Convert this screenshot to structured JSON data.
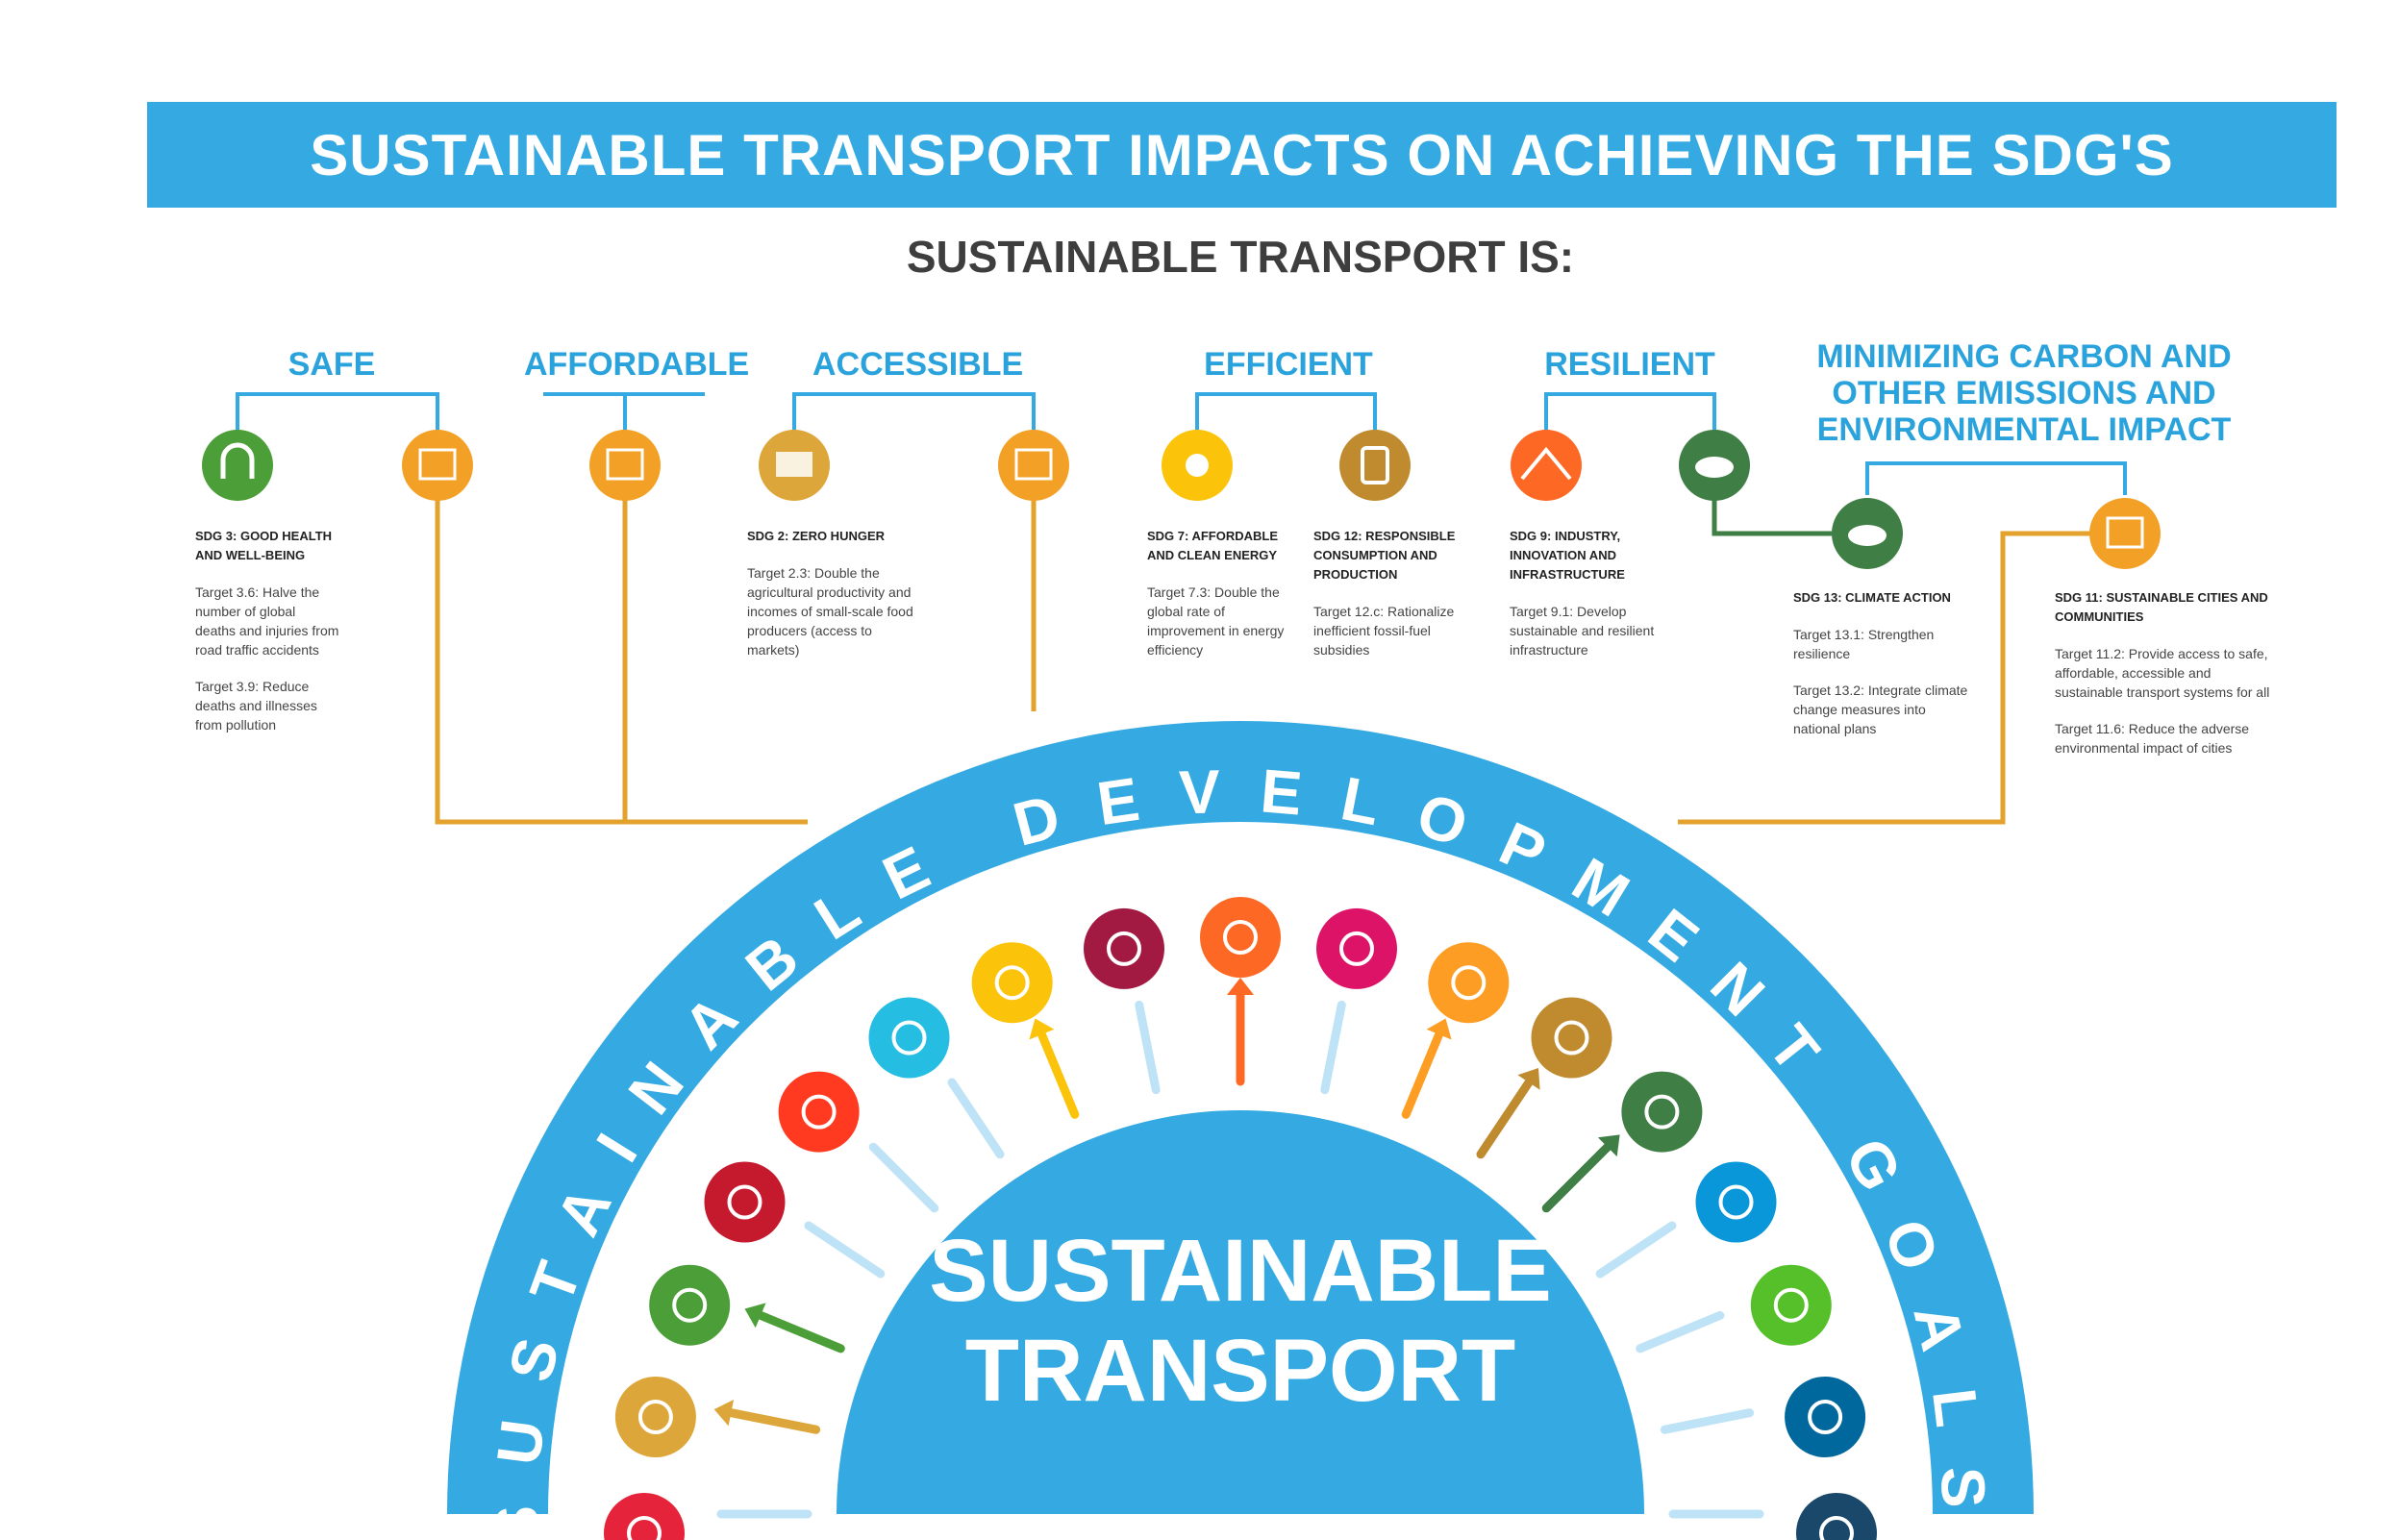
{
  "header": {
    "title": "SUSTAINABLE TRANSPORT IMPACTS ON ACHIEVING THE SDG'S",
    "subtitle": "SUSTAINABLE TRANSPORT IS:"
  },
  "attributes": [
    {
      "label": "SAFE"
    },
    {
      "label": "AFFORDABLE"
    },
    {
      "label": "ACCESSIBLE"
    },
    {
      "label": "EFFICIENT"
    },
    {
      "label": "RESILIENT"
    },
    {
      "label": "MINIMIZING CARBON AND OTHER EMISSIONS AND ENVIRONMENTAL IMPACT"
    }
  ],
  "sdg_notes": [
    {
      "title": "SDG 3: GOOD HEALTH AND WELL-BEING",
      "targets": [
        "Target 3.6: Halve the number of global deaths and injuries from road traffic accidents",
        "Target 3.9: Reduce deaths and illnesses from pollution"
      ]
    },
    {
      "title": "SDG 2: ZERO HUNGER",
      "targets": [
        "Target 2.3: Double the agricultural productivity and incomes of small-scale food producers (access to markets)"
      ]
    },
    {
      "title": "SDG 7: AFFORDABLE AND CLEAN ENERGY",
      "targets": [
        "Target 7.3: Double the global rate of improvement in energy efficiency"
      ]
    },
    {
      "title": "SDG 12: RESPONSIBLE CONSUMPTION AND PRODUCTION",
      "targets": [
        "Target 12.c: Rationalize inefficient fossil-fuel subsidies"
      ]
    },
    {
      "title": "SDG 9: INDUSTRY, INNOVATION AND INFRASTRUCTURE",
      "targets": [
        "Target 9.1: Develop sustainable and resilient infrastructure"
      ]
    },
    {
      "title": "SDG 13: CLIMATE ACTION",
      "targets": [
        "Target 13.1: Strengthen resilience",
        "Target 13.2: Integrate climate change measures into national plans"
      ]
    },
    {
      "title": "SDG 11: SUSTAINABLE CITIES AND COMMUNITIES",
      "targets": [
        "Target 11.2: Provide access to safe, affordable, accessible and sustainable transport systems for all",
        "Target 11.6: Reduce the adverse environmental impact of cities"
      ]
    }
  ],
  "arc": {
    "label": "SUSTAINABLE DEVELOPMENT GOALS",
    "center_line1": "SUSTAINABLE",
    "center_line2": "TRANSPORT"
  },
  "colors": {
    "banner": "#35a9e1",
    "arc_blue": "#35a9e1",
    "connector_orange": "#e3a22e",
    "connector_green": "#3f7e44"
  },
  "goal_icons": [
    {
      "name": "no-poverty-icon",
      "color": "#e5243b"
    },
    {
      "name": "zero-hunger-icon",
      "color": "#dda63a"
    },
    {
      "name": "good-health-icon",
      "color": "#4c9f38"
    },
    {
      "name": "quality-education-icon",
      "color": "#c5192d"
    },
    {
      "name": "gender-equality-icon",
      "color": "#ff3a21"
    },
    {
      "name": "clean-water-icon",
      "color": "#26bde2"
    },
    {
      "name": "clean-energy-icon",
      "color": "#fcc30b"
    },
    {
      "name": "decent-work-icon",
      "color": "#a21942"
    },
    {
      "name": "industry-innovation-icon",
      "color": "#fd6925"
    },
    {
      "name": "reduced-inequalities-icon",
      "color": "#dd1367"
    },
    {
      "name": "sustainable-cities-icon",
      "color": "#fd9d24"
    },
    {
      "name": "responsible-consumption-icon",
      "color": "#bf8b2e"
    },
    {
      "name": "climate-action-icon",
      "color": "#3f7e44"
    },
    {
      "name": "life-below-water-icon",
      "color": "#0a97d9"
    },
    {
      "name": "life-on-land-icon",
      "color": "#56c02b"
    },
    {
      "name": "peace-justice-icon",
      "color": "#00689d"
    },
    {
      "name": "partnerships-icon",
      "color": "#19486a"
    }
  ]
}
